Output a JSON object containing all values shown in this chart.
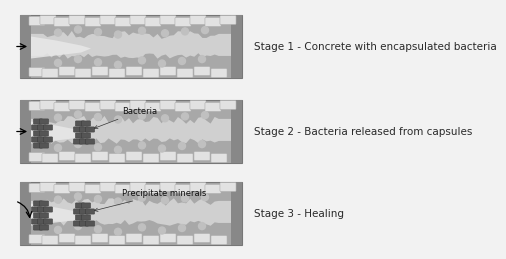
{
  "stages": [
    {
      "label": "Stage 1 - Concrete with encapsulated bacteria",
      "show_bacteria": false,
      "annotation": null,
      "arrow_bent": false
    },
    {
      "label": "Stage 2 - Bacteria released from capsules",
      "show_bacteria": true,
      "annotation": "Bacteria",
      "arrow_bent": false
    },
    {
      "label": "Stage 3 - Healing",
      "show_bacteria": true,
      "annotation": "Precipitate minerals",
      "arrow_bent": true
    }
  ],
  "bg_color": "#f2f2f2",
  "concrete_mid": "#a8a8a8",
  "concrete_dark": "#888888",
  "crack_fill": "#d0d0d0",
  "crack_bright": "#e8e8e8",
  "capsule_fc": "#e2e2e2",
  "capsule_ec": "#aaaaaa",
  "bacteria_fc": "#555555",
  "bacteria_ec": "#333333",
  "dot_color": "#c0c0c0",
  "text_color": "#2a2a2a",
  "label_fs": 7.5,
  "annot_fs": 6.0
}
